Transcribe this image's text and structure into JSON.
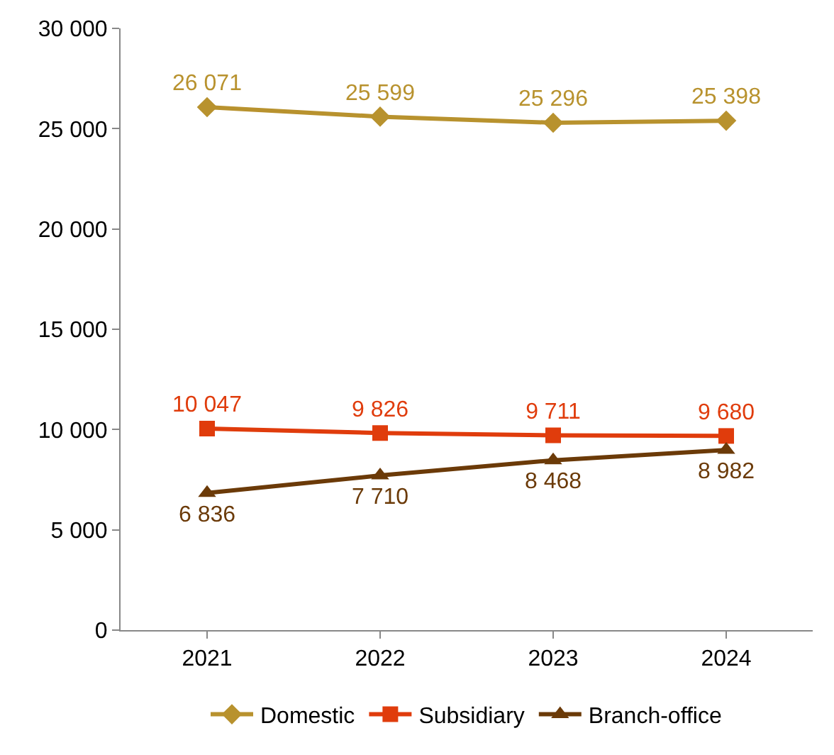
{
  "chart_data": {
    "type": "line",
    "categories": [
      "2021",
      "2022",
      "2023",
      "2024"
    ],
    "series": [
      {
        "name": "Domestic",
        "color": "#b8922e",
        "marker": "diamond",
        "values": [
          26071,
          25599,
          25296,
          25398
        ]
      },
      {
        "name": "Subsidiary",
        "color": "#e03c0c",
        "marker": "square",
        "values": [
          10047,
          9826,
          9711,
          9680
        ]
      },
      {
        "name": "Branch-office",
        "color": "#6b3a08",
        "marker": "triangle",
        "values": [
          6836,
          7710,
          8468,
          8982
        ]
      }
    ],
    "ylim": [
      0,
      30000
    ],
    "yticks": [
      0,
      {
        "value": 5000,
        "label": "5 000"
      },
      {
        "value": 10000,
        "label": "10 000"
      },
      {
        "value": 15000,
        "label": "15 000"
      },
      {
        "value": 20000,
        "label": "20 000"
      },
      {
        "value": 25000,
        "label": "25 000"
      },
      {
        "value": 30000,
        "label": "30 000"
      }
    ],
    "data_labels": true,
    "legend": "bottom",
    "line_style": "solid"
  }
}
